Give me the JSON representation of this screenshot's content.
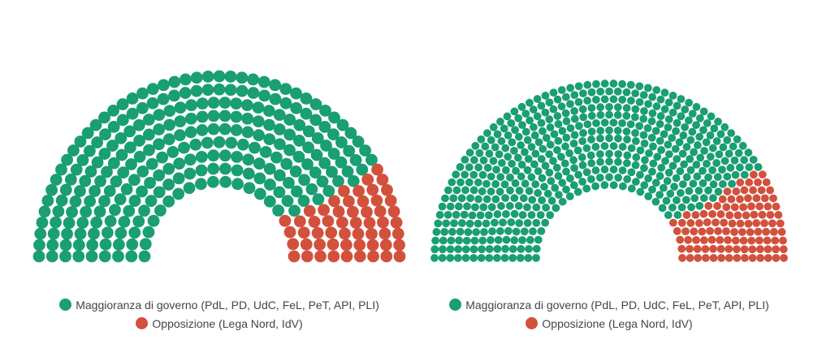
{
  "chart_data": [
    {
      "type": "parliament",
      "categories": [
        "Maggioranza di governo (PdL, PD, UdC, FeL, PeT, API, PLI)",
        "Opposizione (Lega Nord, IdV)"
      ],
      "values": [
        266,
        55
      ],
      "colors": [
        "#1a9e74",
        "#d2513d"
      ]
    },
    {
      "type": "parliament",
      "categories": [
        "Maggioranza di governo (PdL, PD, UdC, FeL, PeT, API, PLI)",
        "Opposizione (Lega Nord, IdV)"
      ],
      "values": [
        520,
        110
      ],
      "colors": [
        "#1a9e74",
        "#d2513d"
      ]
    }
  ]
}
